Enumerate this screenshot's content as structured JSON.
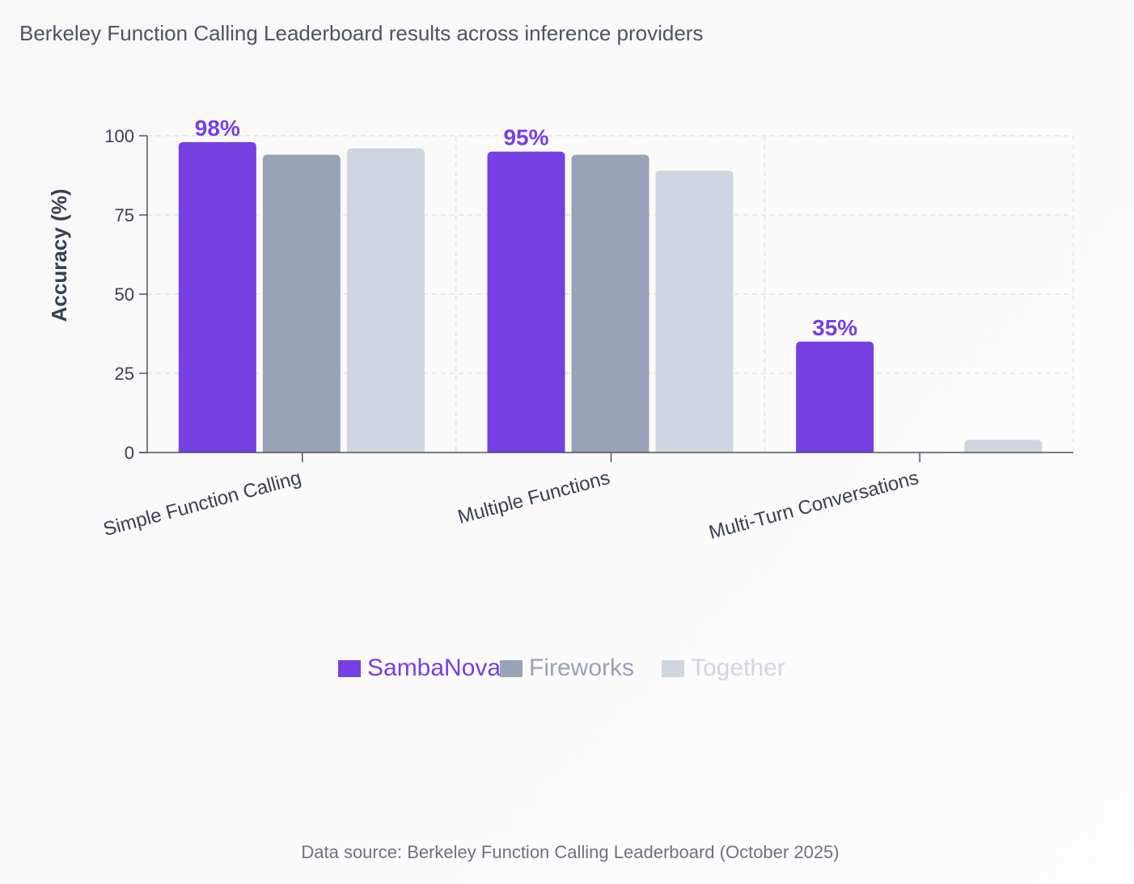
{
  "chart_data": {
    "type": "bar",
    "title": "Berkeley Function Calling Leaderboard results across inference providers",
    "xlabel": "",
    "ylabel": "Accuracy (%)",
    "ylim": [
      0,
      100
    ],
    "yticks": [
      0,
      25,
      50,
      75,
      100
    ],
    "grid": true,
    "legend_position": "bottom-center",
    "categories": [
      "Simple Function Calling",
      "Multiple Functions",
      "Multi-Turn Conversations"
    ],
    "series": [
      {
        "name": "SambaNova",
        "color": "#7640e3",
        "values": [
          98,
          95,
          35
        ],
        "labels": [
          "98%",
          "95%",
          "35%"
        ]
      },
      {
        "name": "Fireworks",
        "color": "#97a3b6",
        "values": [
          94,
          94,
          0
        ]
      },
      {
        "name": "Together",
        "color": "#cfd6e1",
        "values": [
          96,
          89,
          4
        ]
      }
    ]
  },
  "footer": {
    "source": "Data source: Berkeley Function Calling Leaderboard (October 2025)"
  }
}
